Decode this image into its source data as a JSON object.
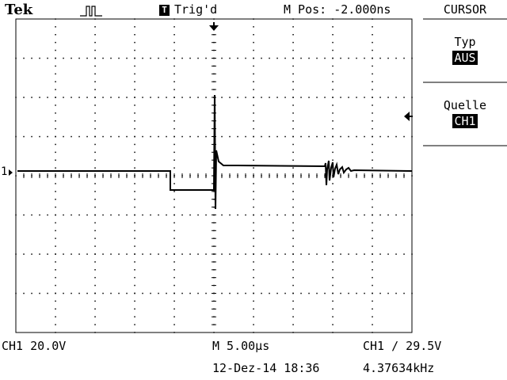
{
  "header": {
    "brand": "Tek",
    "acq_icon": "pulse-icon",
    "trigger_badge": "T",
    "trigger_status": "Trig'd",
    "mpos": "M Pos: -2.000ns"
  },
  "menu": {
    "title": "CURSOR",
    "items": [
      {
        "label": "Typ",
        "value": "AUS"
      },
      {
        "label": "Quelle",
        "value": "CH1"
      }
    ]
  },
  "markers": {
    "ch1_ground": "1",
    "trigger_pos_icon": "arrow-down-icon",
    "trigger_level_icon": "arrow-left-icon"
  },
  "footer": {
    "ch1_scale": "CH1  20.0V",
    "timebase": "M 5.00µs",
    "trigger_info": "CH1 ∕ 29.5V",
    "datetime": "12-Dez-14 18:36",
    "frequency": "4.37634kHz"
  }
}
